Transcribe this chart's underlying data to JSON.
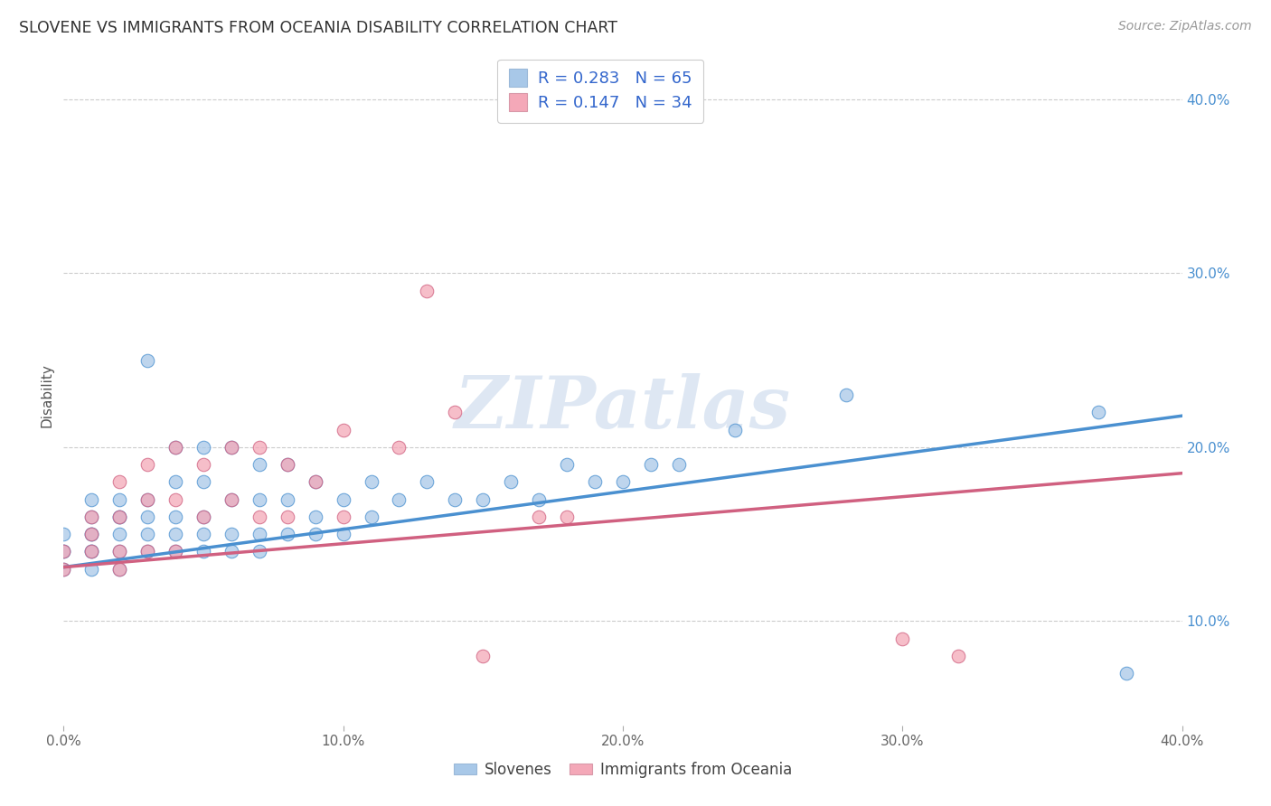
{
  "title": "SLOVENE VS IMMIGRANTS FROM OCEANIA DISABILITY CORRELATION CHART",
  "source": "Source: ZipAtlas.com",
  "ylabel": "Disability",
  "xlim": [
    0.0,
    0.4
  ],
  "ylim": [
    0.04,
    0.42
  ],
  "yticks": [
    0.1,
    0.2,
    0.3,
    0.4
  ],
  "ytick_labels": [
    "10.0%",
    "20.0%",
    "30.0%",
    "40.0%"
  ],
  "xticks": [
    0.0,
    0.1,
    0.2,
    0.3,
    0.4
  ],
  "xtick_labels": [
    "0.0%",
    "10.0%",
    "20.0%",
    "30.0%",
    "40.0%"
  ],
  "blue_color": "#a8c8e8",
  "pink_color": "#f4a8b8",
  "blue_line_color": "#4a90d0",
  "pink_line_color": "#d06080",
  "R_blue": 0.283,
  "N_blue": 65,
  "R_pink": 0.147,
  "N_pink": 34,
  "legend_label_blue": "Slovenes",
  "legend_label_pink": "Immigrants from Oceania",
  "watermark": "ZIPatlas",
  "blue_scatter_x": [
    0.0,
    0.0,
    0.0,
    0.0,
    0.01,
    0.01,
    0.01,
    0.01,
    0.01,
    0.01,
    0.01,
    0.02,
    0.02,
    0.02,
    0.02,
    0.02,
    0.02,
    0.03,
    0.03,
    0.03,
    0.03,
    0.03,
    0.04,
    0.04,
    0.04,
    0.04,
    0.04,
    0.05,
    0.05,
    0.05,
    0.05,
    0.05,
    0.06,
    0.06,
    0.06,
    0.06,
    0.07,
    0.07,
    0.07,
    0.07,
    0.08,
    0.08,
    0.08,
    0.09,
    0.09,
    0.09,
    0.1,
    0.1,
    0.11,
    0.11,
    0.12,
    0.13,
    0.14,
    0.15,
    0.16,
    0.17,
    0.18,
    0.19,
    0.2,
    0.21,
    0.22,
    0.24,
    0.28,
    0.37,
    0.38
  ],
  "blue_scatter_y": [
    0.13,
    0.14,
    0.14,
    0.15,
    0.13,
    0.14,
    0.14,
    0.15,
    0.15,
    0.16,
    0.17,
    0.13,
    0.14,
    0.15,
    0.16,
    0.16,
    0.17,
    0.14,
    0.15,
    0.16,
    0.17,
    0.25,
    0.14,
    0.15,
    0.16,
    0.18,
    0.2,
    0.14,
    0.15,
    0.16,
    0.18,
    0.2,
    0.14,
    0.15,
    0.17,
    0.2,
    0.14,
    0.15,
    0.17,
    0.19,
    0.15,
    0.17,
    0.19,
    0.15,
    0.16,
    0.18,
    0.15,
    0.17,
    0.16,
    0.18,
    0.17,
    0.18,
    0.17,
    0.17,
    0.18,
    0.17,
    0.19,
    0.18,
    0.18,
    0.19,
    0.19,
    0.21,
    0.23,
    0.22,
    0.07
  ],
  "pink_scatter_x": [
    0.0,
    0.0,
    0.01,
    0.01,
    0.01,
    0.02,
    0.02,
    0.02,
    0.02,
    0.03,
    0.03,
    0.03,
    0.04,
    0.04,
    0.04,
    0.05,
    0.05,
    0.06,
    0.06,
    0.07,
    0.07,
    0.08,
    0.08,
    0.09,
    0.1,
    0.1,
    0.12,
    0.13,
    0.14,
    0.15,
    0.17,
    0.18,
    0.3,
    0.32
  ],
  "pink_scatter_y": [
    0.13,
    0.14,
    0.14,
    0.15,
    0.16,
    0.13,
    0.14,
    0.16,
    0.18,
    0.14,
    0.17,
    0.19,
    0.14,
    0.17,
    0.2,
    0.16,
    0.19,
    0.17,
    0.2,
    0.16,
    0.2,
    0.16,
    0.19,
    0.18,
    0.16,
    0.21,
    0.2,
    0.29,
    0.22,
    0.08,
    0.16,
    0.16,
    0.09,
    0.08
  ],
  "blue_line_x0": 0.0,
  "blue_line_y0": 0.131,
  "blue_line_x1": 0.4,
  "blue_line_y1": 0.218,
  "pink_line_x0": 0.0,
  "pink_line_y0": 0.131,
  "pink_line_x1": 0.4,
  "pink_line_y1": 0.185
}
